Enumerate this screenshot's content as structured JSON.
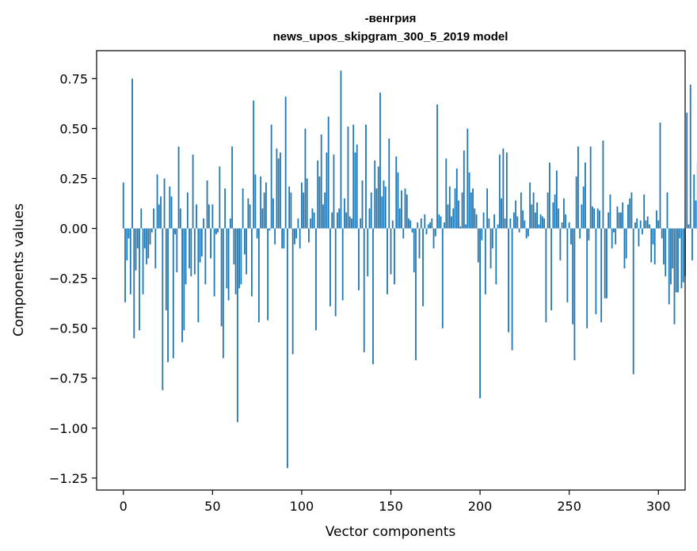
{
  "chart_data": {
    "type": "bar",
    "title_line1": "-венгрия",
    "title_line2": "news_upos_skipgram_300_5_2019 model",
    "xlabel": "Vector components",
    "ylabel": "Components values",
    "xlim": [
      -15,
      315
    ],
    "ylim": [
      -1.31,
      0.89
    ],
    "xticks": [
      0,
      50,
      100,
      150,
      200,
      250,
      300
    ],
    "xtick_labels": [
      "0",
      "50",
      "100",
      "150",
      "200",
      "250",
      "300"
    ],
    "yticks": [
      0.75,
      0.5,
      0.25,
      0.0,
      -0.25,
      -0.5,
      -0.75,
      -1.0,
      -1.25
    ],
    "ytick_labels": [
      "0.75",
      "0.50",
      "0.25",
      "0.00",
      "−0.25",
      "−0.50",
      "−0.75",
      "−1.00",
      "−1.25"
    ],
    "bar_color": "#1f77b4",
    "values": [
      0.23,
      -0.37,
      -0.16,
      -0.05,
      -0.33,
      0.75,
      -0.55,
      -0.21,
      -0.1,
      -0.51,
      0.1,
      -0.33,
      -0.1,
      -0.18,
      -0.15,
      -0.08,
      -0.02,
      0.1,
      -0.2,
      0.27,
      0.12,
      0.16,
      -0.81,
      0.25,
      -0.41,
      -0.67,
      0.21,
      0.16,
      -0.65,
      -0.03,
      -0.22,
      0.41,
      0.1,
      -0.57,
      -0.51,
      -0.28,
      0.18,
      -0.2,
      -0.24,
      0.37,
      -0.23,
      0.12,
      -0.47,
      -0.17,
      -0.14,
      0.05,
      -0.28,
      0.24,
      0.12,
      -0.15,
      0.12,
      -0.34,
      -0.03,
      -0.02,
      0.31,
      -0.49,
      -0.65,
      0.2,
      -0.3,
      -0.36,
      0.05,
      0.41,
      -0.18,
      -0.33,
      -0.97,
      -0.3,
      -0.28,
      0.2,
      -0.13,
      -0.23,
      0.15,
      0.12,
      -0.34,
      0.64,
      0.27,
      -0.05,
      -0.47,
      0.26,
      0.1,
      0.18,
      0.23,
      -0.46,
      -0.01,
      0.52,
      0.15,
      -0.08,
      0.4,
      0.35,
      0.38,
      -0.1,
      -0.1,
      0.66,
      -1.2,
      0.21,
      0.18,
      -0.63,
      -0.08,
      -0.05,
      0.05,
      -0.1,
      0.23,
      0.18,
      0.5,
      0.25,
      -0.07,
      0.05,
      0.1,
      0.08,
      -0.51,
      0.34,
      0.26,
      0.47,
      0.12,
      0.18,
      0.38,
      0.56,
      -0.39,
      0.08,
      0.37,
      -0.44,
      0.08,
      0.1,
      0.79,
      -0.36,
      0.15,
      0.08,
      0.51,
      0.06,
      0.05,
      0.52,
      0.38,
      0.42,
      -0.31,
      0.05,
      0.24,
      -0.62,
      0.52,
      -0.24,
      0.1,
      0.18,
      -0.68,
      0.34,
      0.2,
      0.31,
      0.68,
      0.16,
      0.24,
      0.21,
      -0.33,
      0.45,
      -0.23,
      0.04,
      -0.28,
      0.36,
      0.28,
      0.1,
      0.19,
      -0.05,
      0.2,
      0.17,
      0.05,
      0.04,
      -0.02,
      -0.22,
      -0.66,
      0.03,
      -0.15,
      0.05,
      -0.39,
      0.07,
      -0.03,
      0.02,
      0.03,
      0.05,
      -0.1,
      -0.04,
      0.62,
      0.07,
      0.06,
      -0.5,
      0.03,
      0.35,
      0.12,
      0.21,
      0.06,
      0.1,
      0.2,
      0.3,
      0.14,
      0.01,
      0.18,
      0.39,
      0.02,
      0.5,
      0.28,
      0.18,
      0.2,
      0.1,
      0.07,
      -0.17,
      -0.85,
      -0.06,
      0.08,
      -0.33,
      0.2,
      0.05,
      -0.2,
      -0.1,
      0.07,
      -0.28,
      0.02,
      0.37,
      0.15,
      0.4,
      0.05,
      0.38,
      -0.52,
      0.05,
      -0.61,
      0.08,
      0.14,
      0.06,
      -0.02,
      0.18,
      0.09,
      0.04,
      -0.05,
      -0.04,
      0.23,
      0.12,
      0.18,
      0.08,
      0.13,
      0.02,
      0.07,
      0.06,
      0.05,
      -0.47,
      0.18,
      0.33,
      -0.41,
      0.13,
      0.17,
      0.29,
      0.1,
      -0.16,
      0.03,
      0.15,
      0.07,
      -0.37,
      0.03,
      -0.08,
      -0.48,
      -0.66,
      0.26,
      0.41,
      -0.05,
      0.12,
      0.21,
      0.33,
      -0.5,
      -0.06,
      0.41,
      0.11,
      0.1,
      -0.43,
      0.1,
      0.09,
      -0.47,
      0.44,
      -0.35,
      -0.35,
      0.08,
      0.17,
      -0.1,
      -0.02,
      -0.08,
      0.11,
      0.08,
      0.08,
      0.13,
      -0.2,
      -0.15,
      0.12,
      0.15,
      0.18,
      -0.73,
      0.03,
      0.05,
      -0.09,
      0.04,
      -0.03,
      0.17,
      0.04,
      0.06,
      0.02,
      -0.17,
      -0.08,
      -0.18,
      0.09,
      0.04,
      0.53,
      -0.05,
      -0.18,
      -0.24,
      0.18,
      -0.38,
      -0.28,
      -0.2,
      -0.48,
      -0.32,
      -0.32,
      -0.05,
      -0.3,
      -0.27,
      -0.24,
      0.58,
      0.02,
      0.72,
      -0.16,
      0.27,
      0.14,
      0.33
    ]
  }
}
